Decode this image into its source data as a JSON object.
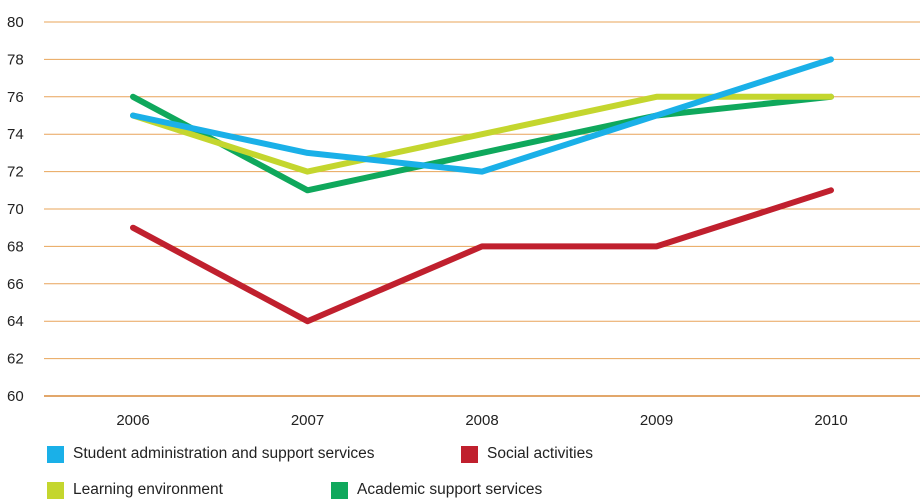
{
  "chart_data": {
    "type": "line",
    "x": [
      "2006",
      "2007",
      "2008",
      "2009",
      "2010"
    ],
    "ylim": [
      60,
      80
    ],
    "yticks": [
      60,
      62,
      64,
      66,
      68,
      70,
      72,
      74,
      76,
      78,
      80
    ],
    "grid": true,
    "legend_position": "bottom-left",
    "series": [
      {
        "name": "Student administration and support services",
        "color": "#1ab0e8",
        "values": [
          75,
          73,
          72,
          75,
          78
        ]
      },
      {
        "name": "Social activities",
        "color": "#c0202e",
        "values": [
          69,
          64,
          68,
          68,
          71
        ]
      },
      {
        "name": "Learning environment",
        "color": "#c4d62e",
        "values": [
          75,
          72,
          74,
          76,
          76
        ]
      },
      {
        "name": "Academic support services",
        "color": "#0fa85c",
        "values": [
          76,
          71,
          73,
          75,
          76
        ]
      }
    ],
    "colors": {
      "grid": "#e8a45a",
      "axis": "#d98a3a"
    }
  }
}
